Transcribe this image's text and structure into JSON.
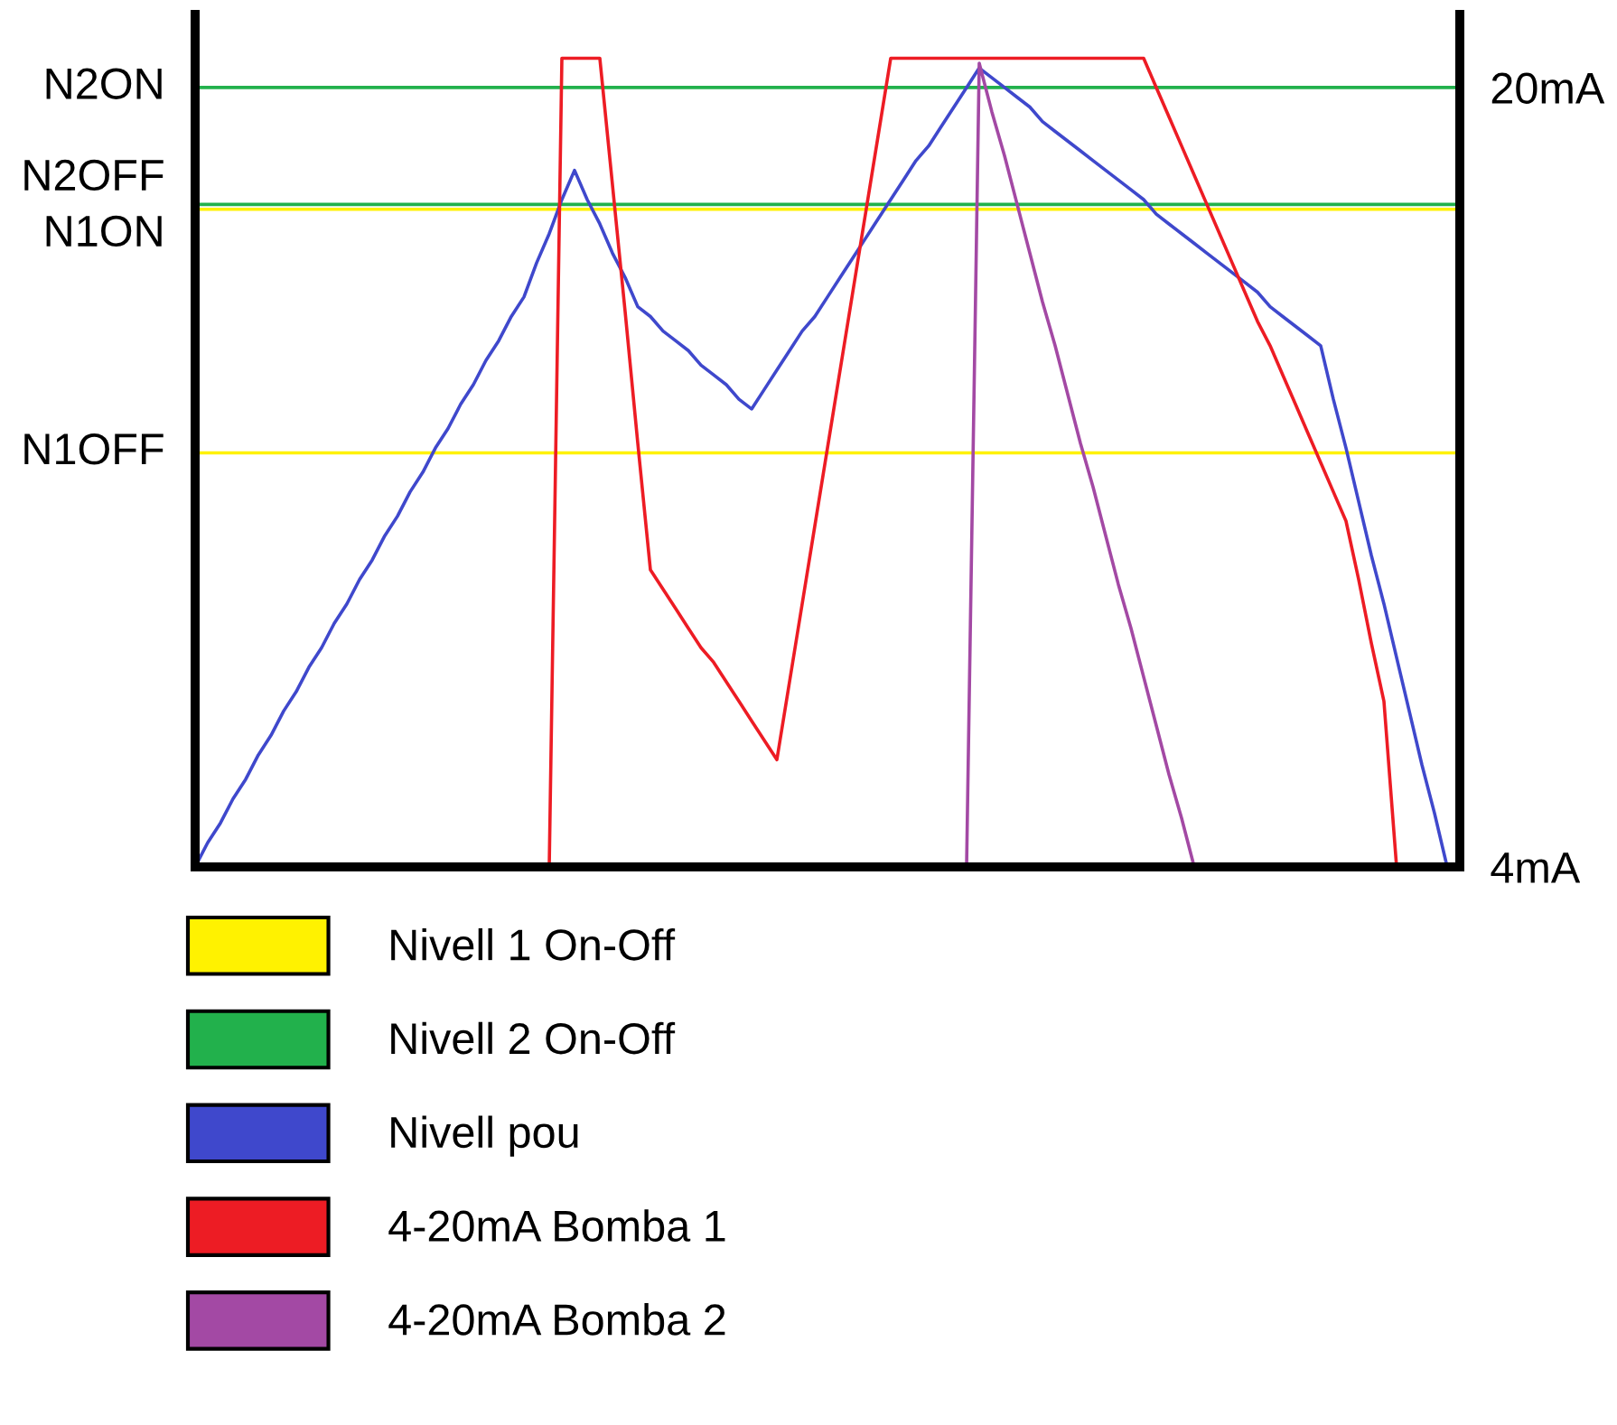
{
  "chart_data": {
    "type": "line",
    "ylim": [
      4,
      21.5
    ],
    "yticks": [
      {
        "value": 4,
        "label": "4mA"
      },
      {
        "value": 20,
        "label": "20mA"
      }
    ],
    "tick_labels": "y",
    "legend": "bottom left",
    "categories": [
      null,
      null,
      null,
      null,
      null,
      null,
      null,
      null,
      null,
      null,
      null,
      null,
      null,
      null,
      null,
      null,
      null,
      null,
      null,
      null,
      null,
      null,
      null,
      null,
      null,
      null,
      null,
      null,
      null,
      null,
      null,
      null,
      null,
      null,
      null,
      null,
      null,
      null,
      null,
      null,
      null,
      null,
      null,
      null,
      null,
      null,
      null,
      null,
      null,
      null,
      null,
      null,
      null,
      null,
      null,
      null,
      null,
      null,
      null,
      null,
      null,
      null,
      null,
      null,
      null,
      null,
      null,
      null,
      null,
      null,
      null,
      null,
      null,
      null,
      null,
      null,
      null,
      null,
      null,
      null,
      null,
      null,
      null,
      null,
      null,
      null,
      null,
      null,
      null,
      null,
      null,
      null,
      null,
      null,
      null,
      null,
      null,
      null,
      null,
      null,
      null
    ],
    "ref_lines": [
      {
        "axis": "y",
        "value": 20,
        "label": "N2ON",
        "color": "#22b14c"
      },
      {
        "axis": "y",
        "value": 17.6,
        "label": "N2OFF",
        "color": "#22b14c"
      },
      {
        "axis": "y",
        "value": 17.5,
        "label": "N1ON",
        "color": "#fff200"
      },
      {
        "axis": "y",
        "value": 12.5,
        "label": "N1OFF",
        "color": "#fff200"
      }
    ],
    "series": [
      {
        "name": "Nivell 1 On-Off",
        "color": "#fff200",
        "values": [
          null,
          null,
          null,
          null,
          null,
          null,
          null,
          null,
          null,
          null,
          null,
          null,
          null,
          null,
          null,
          null,
          null,
          null,
          null,
          null,
          null,
          null,
          null,
          null,
          null,
          null,
          null,
          null,
          null,
          null,
          null,
          null,
          null,
          null,
          null,
          null,
          null,
          null,
          null,
          null,
          null,
          null,
          null,
          null,
          null,
          null,
          null,
          null,
          null,
          null,
          null,
          null,
          null,
          null,
          null,
          null,
          null,
          null,
          null,
          null,
          null,
          null,
          null,
          null,
          null,
          null,
          null,
          null,
          null,
          null,
          null,
          null,
          null,
          null,
          null,
          null,
          null,
          null,
          null,
          null,
          null,
          null,
          null,
          null,
          null,
          null,
          null,
          null,
          null,
          null,
          null,
          null,
          null,
          null,
          null,
          null,
          null,
          null,
          null,
          null,
          null
        ]
      },
      {
        "name": "Nivell 2 On-Off",
        "color": "#22b14c",
        "values": [
          null,
          null,
          null,
          null,
          null,
          null,
          null,
          null,
          null,
          null,
          null,
          null,
          null,
          null,
          null,
          null,
          null,
          null,
          null,
          null,
          null,
          null,
          null,
          null,
          null,
          null,
          null,
          null,
          null,
          null,
          null,
          null,
          null,
          null,
          null,
          null,
          null,
          null,
          null,
          null,
          null,
          null,
          null,
          null,
          null,
          null,
          null,
          null,
          null,
          null,
          null,
          null,
          null,
          null,
          null,
          null,
          null,
          null,
          null,
          null,
          null,
          null,
          null,
          null,
          null,
          null,
          null,
          null,
          null,
          null,
          null,
          null,
          null,
          null,
          null,
          null,
          null,
          null,
          null,
          null,
          null,
          null,
          null,
          null,
          null,
          null,
          null,
          null,
          null,
          null,
          null,
          null,
          null,
          null,
          null,
          null,
          null,
          null,
          null,
          null,
          null
        ]
      },
      {
        "name": "Nivell pou",
        "color": "#3f48cc",
        "values": [
          4,
          4.5,
          4.9,
          5.4,
          5.8,
          6.3,
          6.7,
          7.2,
          7.6,
          8.1,
          8.5,
          9.0,
          9.4,
          9.9,
          10.3,
          10.8,
          11.2,
          11.7,
          12.1,
          12.6,
          13.0,
          13.5,
          13.9,
          14.4,
          14.8,
          15.3,
          15.7,
          16.4,
          17.0,
          17.7,
          18.3,
          17.7,
          17.2,
          16.6,
          16.1,
          15.5,
          15.3,
          15.0,
          14.8,
          14.6,
          14.3,
          14.1,
          13.9,
          13.6,
          13.4,
          13.8,
          14.2,
          14.6,
          15.0,
          15.3,
          15.7,
          16.1,
          16.5,
          16.9,
          17.3,
          17.7,
          18.1,
          18.5,
          18.8,
          19.2,
          19.6,
          20.0,
          20.4,
          20.2,
          20.0,
          19.8,
          19.6,
          19.3,
          19.1,
          18.9,
          18.7,
          18.5,
          18.3,
          18.1,
          17.9,
          17.7,
          17.4,
          17.2,
          17.0,
          16.8,
          16.6,
          16.4,
          16.2,
          16.0,
          15.8,
          15.5,
          15.3,
          15.1,
          14.9,
          14.7,
          13.6,
          12.6,
          11.5,
          10.4,
          9.4,
          8.3,
          7.2,
          6.1,
          5.1,
          4,
          null
        ]
      },
      {
        "name": "4-20mA Bomba 1",
        "color": "#ed1c24",
        "values": [
          null,
          null,
          null,
          null,
          null,
          null,
          null,
          null,
          null,
          null,
          null,
          null,
          null,
          null,
          null,
          null,
          null,
          null,
          null,
          null,
          null,
          null,
          null,
          null,
          null,
          null,
          null,
          null,
          4,
          20.6,
          20.6,
          20.6,
          20.6,
          18.0,
          15.4,
          12.7,
          10.1,
          9.7,
          9.3,
          8.9,
          8.5,
          8.2,
          7.8,
          7.4,
          7.0,
          6.6,
          6.2,
          7.8,
          9.4,
          11.0,
          12.6,
          14.2,
          15.8,
          17.4,
          19.0,
          20.6,
          20.6,
          20.6,
          20.6,
          20.6,
          20.6,
          20.6,
          20.6,
          20.6,
          20.6,
          20.6,
          20.6,
          20.6,
          20.6,
          20.6,
          20.6,
          20.6,
          20.6,
          20.6,
          20.6,
          20.6,
          20.0,
          19.4,
          18.8,
          18.2,
          17.6,
          17.0,
          16.4,
          15.8,
          15.2,
          14.7,
          14.1,
          13.5,
          12.9,
          12.3,
          11.7,
          11.1,
          9.9,
          8.6,
          7.4,
          4,
          null,
          null,
          null,
          null,
          null
        ]
      },
      {
        "name": "4-20mA Bomba 2",
        "color": "#a349a4",
        "values": [
          null,
          null,
          null,
          null,
          null,
          null,
          null,
          null,
          null,
          null,
          null,
          null,
          null,
          null,
          null,
          null,
          null,
          null,
          null,
          null,
          null,
          null,
          null,
          null,
          null,
          null,
          null,
          null,
          null,
          null,
          null,
          null,
          null,
          null,
          null,
          null,
          null,
          null,
          null,
          null,
          null,
          null,
          null,
          null,
          null,
          null,
          null,
          null,
          null,
          null,
          null,
          null,
          null,
          null,
          null,
          null,
          null,
          null,
          null,
          null,
          null,
          4,
          20.5,
          19.5,
          18.6,
          17.6,
          16.6,
          15.6,
          14.7,
          13.7,
          12.7,
          11.8,
          10.8,
          9.8,
          8.9,
          7.9,
          6.9,
          5.9,
          5.0,
          4,
          null,
          null,
          null,
          null,
          null,
          null,
          null,
          null,
          null,
          null,
          null,
          null,
          null,
          null,
          null,
          null,
          null,
          null,
          null,
          null,
          null
        ]
      }
    ]
  }
}
